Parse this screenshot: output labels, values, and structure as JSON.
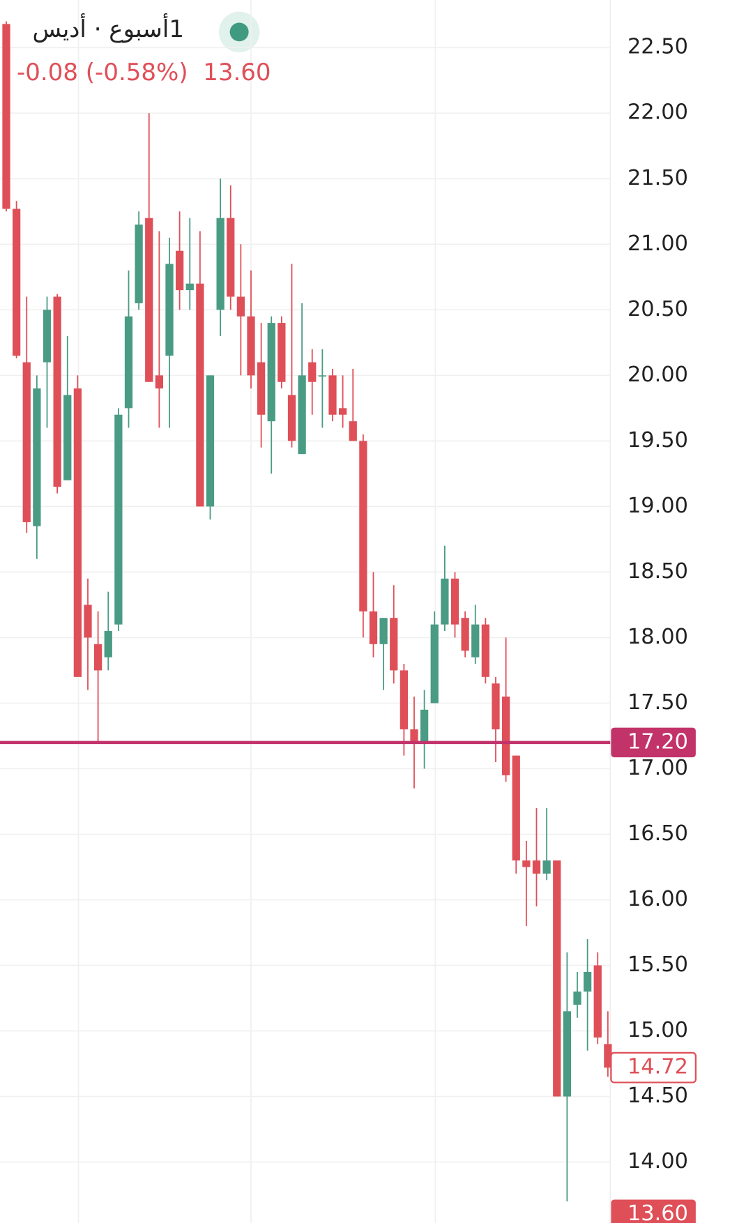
{
  "header": {
    "interval": "1أسبوع · أديس",
    "change": "-0.08 (-0.58%)",
    "last": "13.60"
  },
  "chart_data": {
    "type": "candlestick",
    "up_color": "#4a9b84",
    "down_color": "#df4f58",
    "grid": true,
    "ylim": [
      13.535,
      22.863
    ],
    "yticks": [
      {
        "value": 22.5,
        "label": "22.50"
      },
      {
        "value": 22,
        "label": "22.00"
      },
      {
        "value": 21.5,
        "label": "21.50"
      },
      {
        "value": 21,
        "label": "21.00"
      },
      {
        "value": 20.5,
        "label": "20.50"
      },
      {
        "value": 20,
        "label": "20.00"
      },
      {
        "value": 19.5,
        "label": "19.50"
      },
      {
        "value": 19,
        "label": "19.00"
      },
      {
        "value": 18.5,
        "label": "18.50"
      },
      {
        "value": 18,
        "label": "18.00"
      },
      {
        "value": 17.5,
        "label": "17.50"
      },
      {
        "value": 17,
        "label": "17.00"
      },
      {
        "value": 16.5,
        "label": "16.50"
      },
      {
        "value": 16,
        "label": "16.00"
      },
      {
        "value": 15.5,
        "label": "15.50"
      },
      {
        "value": 15,
        "label": "15.00"
      },
      {
        "value": 14.5,
        "label": "14.50"
      },
      {
        "value": 14,
        "label": "14.00"
      }
    ],
    "price_lines": [
      {
        "value": 17.2,
        "label": "17.20",
        "color": "#c2336a",
        "style": "line"
      },
      {
        "value": 14.72,
        "label": "14.72",
        "color": "#df4f58",
        "style": "outline"
      },
      {
        "value": 13.6,
        "label": "13.60",
        "color": "#df4f58",
        "style": "filled"
      }
    ],
    "open": [
      22.68,
      21.27,
      20.1,
      18.85,
      20.1,
      20.6,
      19.2,
      19.9,
      18.25,
      17.95,
      17.85,
      18.1,
      19.75,
      20.55,
      21.2,
      20.0,
      20.15,
      20.95,
      20.65,
      20.7,
      19.0,
      20.5,
      21.2,
      20.6,
      20.45,
      20.1,
      19.65,
      20.4,
      19.85,
      19.4,
      20.1,
      20.0,
      20.0,
      19.75,
      19.65,
      19.5,
      18.2,
      17.95,
      18.15,
      17.75,
      17.3,
      17.2,
      17.5,
      18.1,
      18.45,
      18.15,
      17.85,
      18.1,
      17.65,
      17.55,
      17.1,
      16.3,
      16.3,
      16.2,
      16.3,
      14.5,
      15.2,
      15.3,
      15.5,
      14.9
    ],
    "high": [
      22.7,
      21.33,
      20.6,
      20.0,
      20.6,
      20.62,
      20.3,
      20.0,
      18.45,
      18.2,
      18.35,
      19.75,
      20.8,
      21.25,
      22.0,
      21.1,
      21.05,
      21.25,
      21.2,
      21.1,
      20.0,
      21.5,
      21.45,
      21.0,
      20.8,
      20.4,
      20.45,
      20.45,
      20.85,
      20.55,
      20.2,
      20.2,
      20.05,
      20.0,
      20.05,
      19.55,
      18.5,
      18.15,
      18.4,
      17.8,
      17.55,
      17.6,
      18.2,
      18.7,
      18.5,
      18.2,
      18.25,
      18.15,
      17.7,
      18.0,
      17.1,
      16.45,
      16.7,
      16.7,
      16.3,
      15.6,
      15.45,
      15.7,
      15.6,
      15.15
    ],
    "low": [
      21.25,
      20.13,
      18.8,
      18.6,
      19.6,
      19.1,
      19.2,
      17.7,
      17.6,
      17.2,
      17.75,
      18.05,
      19.6,
      20.5,
      19.95,
      19.6,
      19.6,
      20.5,
      20.5,
      19.0,
      18.9,
      20.3,
      20.5,
      20.0,
      19.9,
      19.45,
      19.25,
      19.9,
      19.45,
      19.4,
      19.7,
      19.6,
      19.65,
      19.6,
      19.5,
      18.0,
      17.85,
      17.6,
      17.65,
      17.1,
      16.85,
      17.0,
      17.5,
      18.05,
      18.0,
      17.85,
      17.8,
      17.65,
      17.05,
      16.9,
      16.2,
      15.8,
      15.95,
      16.15,
      14.5,
      13.7,
      15.1,
      14.85,
      14.9,
      14.65
    ],
    "close": [
      21.27,
      20.15,
      18.88,
      19.9,
      20.5,
      19.15,
      19.85,
      17.7,
      18.0,
      17.75,
      18.05,
      19.7,
      20.45,
      21.15,
      19.95,
      19.9,
      20.85,
      20.65,
      20.7,
      19.0,
      20.0,
      21.2,
      20.6,
      20.45,
      20.0,
      19.7,
      20.4,
      19.95,
      19.5,
      20.0,
      19.95,
      20.0,
      19.7,
      19.7,
      19.5,
      18.2,
      17.95,
      18.15,
      17.75,
      17.3,
      17.2,
      17.45,
      18.1,
      18.45,
      18.1,
      17.9,
      18.1,
      17.7,
      17.3,
      16.95,
      16.3,
      16.25,
      16.2,
      16.3,
      14.5,
      15.15,
      15.3,
      15.45,
      14.95,
      14.72
    ]
  }
}
